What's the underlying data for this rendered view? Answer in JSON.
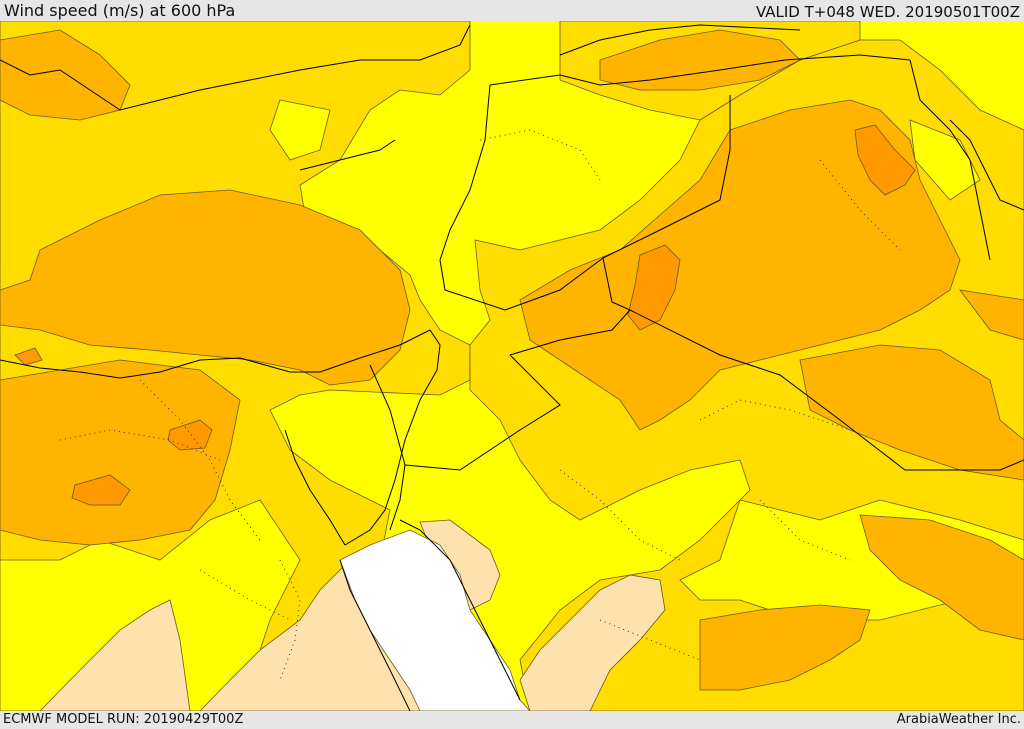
{
  "header": {
    "title": "Wind speed (m/s) at 600 hPa",
    "valid": "VALID T+048 WED. 20190501T00Z"
  },
  "footer": {
    "model_run": "ECMWF MODEL RUN: 20190429T00Z",
    "credit": "ArabiaWeather Inc."
  },
  "map": {
    "variable": "wind speed",
    "level": "600 hPa",
    "colors": {
      "calm": "#ffffff",
      "very_light": "#fde2ad",
      "light": "#ffff00",
      "moderate": "#ffdd00",
      "strong": "#ffb400",
      "very_strong": "#ff9900",
      "contour": "#6b5a1e",
      "border": "#000000"
    }
  }
}
